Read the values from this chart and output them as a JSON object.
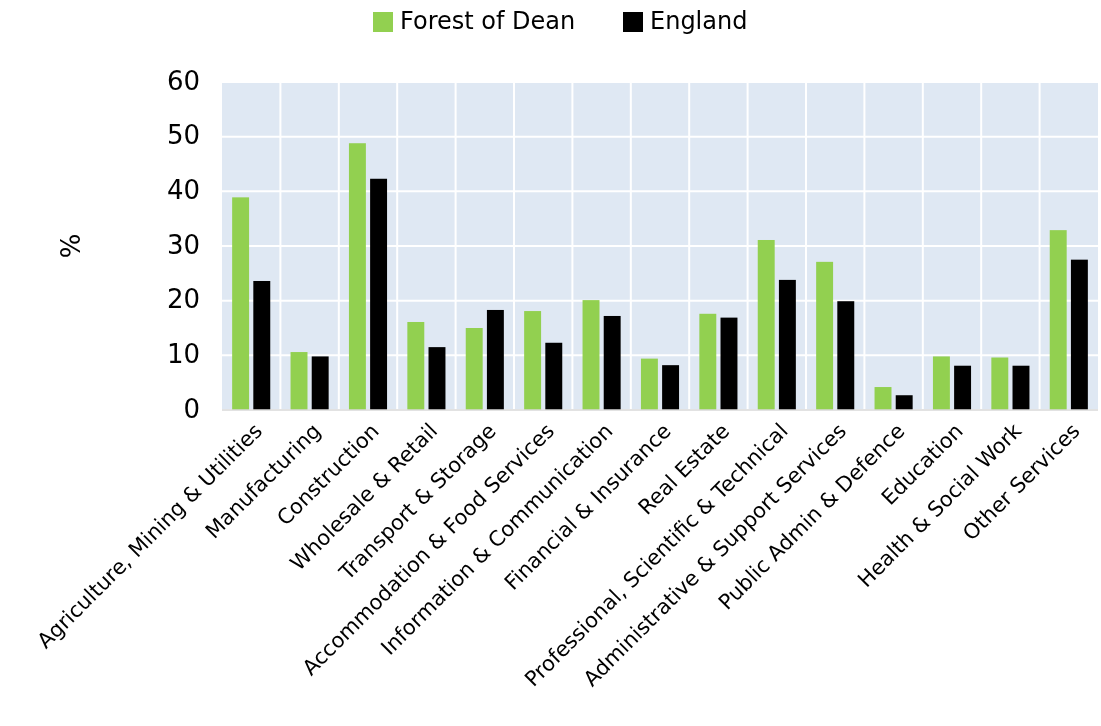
{
  "chart_data": {
    "type": "bar",
    "ylabel": "%",
    "categories": [
      "Agriculture, Mining & Utilities",
      "Manufacturing",
      "Construction",
      "Wholesale & Retail",
      "Transport & Storage",
      "Accommodation & Food Services",
      "Information & Communication",
      "Financial & Insurance",
      "Real Estate",
      "Professional, Scientific & Technical",
      "Administrative & Support Services",
      "Public Admin & Defence",
      "Education",
      "Health & Social Work",
      "Other Services"
    ],
    "series": [
      {
        "name": "Forest of Dean",
        "color": "#92d050",
        "values": [
          38.9,
          10.6,
          48.8,
          16.1,
          15.0,
          18.1,
          20.1,
          9.4,
          17.6,
          31.1,
          27.1,
          4.2,
          9.8,
          9.6,
          32.9
        ]
      },
      {
        "name": "England",
        "color": "#000000",
        "values": [
          23.6,
          9.8,
          42.3,
          11.5,
          18.3,
          12.3,
          17.2,
          8.2,
          16.9,
          23.8,
          19.9,
          2.7,
          8.1,
          8.1,
          27.5
        ]
      }
    ],
    "ylim": [
      0,
      60
    ],
    "yticks": [
      0,
      10,
      20,
      30,
      40,
      50,
      60
    ],
    "grid": true,
    "legend": "top"
  }
}
